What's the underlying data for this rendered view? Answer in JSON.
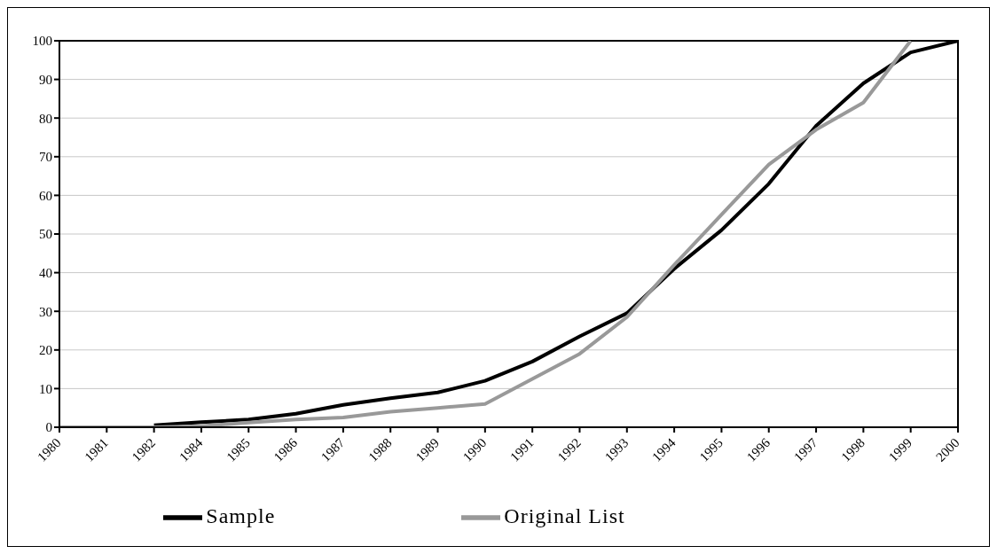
{
  "chart_data": {
    "type": "line",
    "categories": [
      "1980",
      "1981",
      "1982",
      "1984",
      "1985",
      "1986",
      "1987",
      "1988",
      "1989",
      "1990",
      "1991",
      "1992",
      "1993",
      "1994",
      "1995",
      "1996",
      "1997",
      "1998",
      "1999",
      "2000"
    ],
    "series": [
      {
        "name": "Sample",
        "color": "#000000",
        "values": [
          null,
          null,
          0.5,
          1.3,
          2,
          3.5,
          5.8,
          7.5,
          9,
          12,
          17,
          23.5,
          29.5,
          41,
          51,
          63,
          78,
          89,
          97,
          100
        ]
      },
      {
        "name": "Original List",
        "color": "#999999",
        "values": [
          0,
          0,
          0,
          0.3,
          1.2,
          2,
          2.5,
          4,
          5,
          6,
          12.5,
          19,
          28.5,
          42,
          55,
          68,
          77,
          84,
          100,
          null
        ]
      }
    ],
    "ylim": [
      0,
      100
    ],
    "yticks": [
      0,
      10,
      20,
      30,
      40,
      50,
      60,
      70,
      80,
      90,
      100
    ],
    "grid": "y",
    "legend": "bottom",
    "marker": "none",
    "line_style": "solid"
  }
}
